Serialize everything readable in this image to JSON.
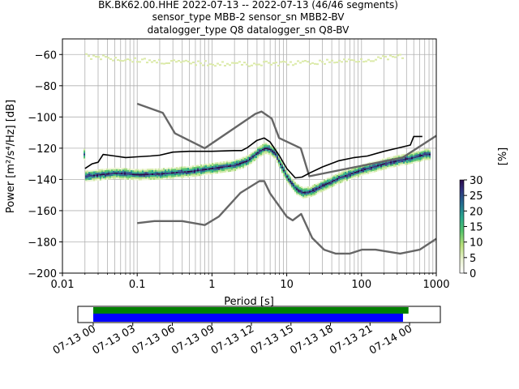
{
  "chart_data": [
    {
      "type": "heatmap",
      "title": [
        "BK.BK62.00.HHE   2022-07-13 -- 2022-07-13  (46/46 segments)",
        "sensor_type MBB-2 sensor_sn MBB2-BV",
        "datalogger_type Q8 datalogger_sn Q8-BV"
      ],
      "xlabel": "Period [s]",
      "ylabel": "Power [m²/s⁴/Hz] [dB]",
      "xscale": "log",
      "xlim": [
        0.01,
        1000
      ],
      "ylim": [
        -200,
        -50
      ],
      "xticks": [
        0.01,
        0.1,
        1,
        10,
        100,
        1000
      ],
      "xtick_labels": [
        "0.01",
        "0.1",
        "1",
        "10",
        "100",
        "1000"
      ],
      "yticks": [
        -200,
        -180,
        -160,
        -140,
        -120,
        -100,
        -80,
        -60
      ],
      "ytick_labels": [
        "−200",
        "−180",
        "−160",
        "−140",
        "−120",
        "−100",
        "−80",
        "−60"
      ],
      "grid": true,
      "colorbar": {
        "label": "[%]",
        "range": [
          0,
          30
        ],
        "ticks": [
          0,
          5,
          10,
          15,
          20,
          25,
          30
        ]
      },
      "lines": {
        "nhnm": {
          "x": [
            0.1,
            0.22,
            0.32,
            0.8,
            3.8,
            4.6,
            6.3,
            7.9,
            15.4,
            20,
            354.8,
            1000
          ],
          "y": [
            -91.5,
            -97.4,
            -110.5,
            -120,
            -98,
            -96.5,
            -101,
            -113.5,
            -120,
            -138,
            -126,
            -112
          ],
          "color": "#666666"
        },
        "nlnm": {
          "x": [
            0.1,
            0.17,
            0.4,
            0.8,
            1.24,
            2.4,
            4.3,
            5,
            6,
            10,
            12,
            15.6,
            21.9,
            31.6,
            45,
            70,
            101,
            154,
            328,
            600,
            1000
          ],
          "y": [
            -168,
            -166.7,
            -166.7,
            -169.2,
            -163.7,
            -148.6,
            -141.1,
            -141.1,
            -149,
            -163.8,
            -166.2,
            -162.1,
            -177.5,
            -185,
            -187.5,
            -187.5,
            -185,
            -185,
            -187.5,
            -185,
            -178
          ],
          "color": "#666666"
        },
        "mode": {
          "x": [
            0.02,
            0.025,
            0.03,
            0.035,
            0.05,
            0.07,
            0.1,
            0.15,
            0.2,
            0.3,
            0.5,
            1,
            2,
            2.5,
            3,
            4,
            5,
            6,
            8,
            10,
            13,
            16,
            20,
            30,
            50,
            80,
            120,
            200,
            300,
            450,
            500,
            650
          ],
          "y": [
            -133,
            -130,
            -129,
            -124,
            -125,
            -126,
            -125.5,
            -125,
            -124.5,
            -122.5,
            -122,
            -122,
            -121.5,
            -121.5,
            -119.5,
            -115,
            -113.5,
            -116,
            -125,
            -133,
            -139,
            -138.5,
            -136,
            -132,
            -128,
            -126,
            -125,
            -122,
            -120,
            -118,
            -112.5,
            -112.5
          ],
          "color": "#000000"
        }
      },
      "density": {
        "x": [
          0.02,
          0.05,
          0.1,
          0.2,
          0.5,
          1,
          2,
          3,
          4,
          5,
          6,
          7,
          8,
          10,
          13,
          16,
          20,
          30,
          50,
          100,
          200,
          300,
          500,
          700
        ],
        "y": [
          -138,
          -136,
          -137,
          -136.5,
          -135,
          -133,
          -131,
          -128,
          -123,
          -120,
          -121,
          -124,
          -130,
          -139,
          -146,
          -148.5,
          -148,
          -144,
          -139,
          -134,
          -130,
          -128,
          -126,
          -124
        ]
      },
      "time_axis": {
        "tick_labels": [
          "07-13 00",
          "07-13 03",
          "07-13 06",
          "07-13 09",
          "07-13 12",
          "07-13 15",
          "07-13 18",
          "07-13 21",
          "07-14 00"
        ],
        "xlim": [
          "2022-07-12T22:50",
          "2022-07-14T02:20"
        ],
        "data_coverage": [
          "2022-07-13T00:00",
          "2022-07-13T23:30"
        ],
        "gap_coverage": [
          "2022-07-13T00:00",
          "2022-07-13T23:55"
        ],
        "data_color": "#0000ff",
        "gap_color": "#008000"
      }
    }
  ]
}
